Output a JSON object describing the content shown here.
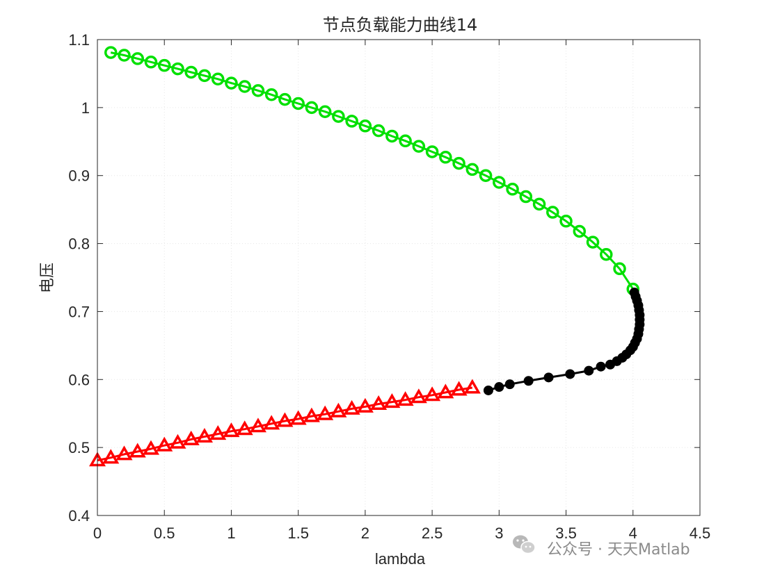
{
  "chart_data": {
    "type": "line",
    "title": "节点负载能力曲线14",
    "xlabel": "lambda",
    "ylabel": "电压",
    "xlim": [
      0,
      4.5
    ],
    "ylim": [
      0.4,
      1.1
    ],
    "xticks": [
      0,
      0.5,
      1,
      1.5,
      2,
      2.5,
      3,
      3.5,
      4,
      4.5
    ],
    "yticks": [
      0.4,
      0.5,
      0.6,
      0.7,
      0.8,
      0.9,
      1,
      1.1
    ],
    "xtick_labels": [
      "0",
      "0.5",
      "1",
      "1.5",
      "2",
      "2.5",
      "3",
      "3.5",
      "4",
      "4.5"
    ],
    "ytick_labels": [
      "0.4",
      "0.5",
      "0.6",
      "0.7",
      "0.8",
      "0.9",
      "1",
      "1.1"
    ],
    "grid": true,
    "series": [
      {
        "color": "#00e000",
        "marker": "circle",
        "x": [
          0.1,
          0.2,
          0.3,
          0.4,
          0.5,
          0.6,
          0.7,
          0.8,
          0.9,
          1.0,
          1.1,
          1.2,
          1.3,
          1.4,
          1.5,
          1.6,
          1.7,
          1.8,
          1.9,
          2.0,
          2.1,
          2.2,
          2.3,
          2.4,
          2.5,
          2.6,
          2.7,
          2.8,
          2.9,
          3.0,
          3.1,
          3.2,
          3.3,
          3.4,
          3.5,
          3.6,
          3.7,
          3.8,
          3.9,
          4.0
        ],
        "y": [
          1.081,
          1.077,
          1.072,
          1.067,
          1.062,
          1.057,
          1.052,
          1.047,
          1.042,
          1.036,
          1.031,
          1.025,
          1.019,
          1.012,
          1.006,
          1.0,
          0.994,
          0.987,
          0.98,
          0.973,
          0.966,
          0.958,
          0.951,
          0.943,
          0.935,
          0.927,
          0.918,
          0.909,
          0.9,
          0.89,
          0.88,
          0.869,
          0.858,
          0.846,
          0.833,
          0.818,
          0.802,
          0.784,
          0.763,
          0.733
        ]
      },
      {
        "color": "#000000",
        "marker": "filled-circle",
        "x": [
          4.01,
          4.02,
          4.03,
          4.04,
          4.045,
          4.05,
          4.05,
          4.05,
          4.045,
          4.04,
          4.03,
          4.015,
          4.0,
          3.98,
          3.95,
          3.92,
          3.88,
          3.83,
          3.76,
          3.67,
          3.53,
          3.37,
          3.22,
          3.08,
          3.0,
          2.92
        ],
        "y": [
          0.728,
          0.722,
          0.716,
          0.709,
          0.702,
          0.695,
          0.688,
          0.681,
          0.674,
          0.667,
          0.66,
          0.654,
          0.648,
          0.643,
          0.637,
          0.632,
          0.627,
          0.622,
          0.619,
          0.613,
          0.608,
          0.603,
          0.598,
          0.593,
          0.589,
          0.584
        ]
      },
      {
        "color": "#ff0000",
        "marker": "triangle",
        "x": [
          0.0,
          0.1,
          0.2,
          0.3,
          0.4,
          0.5,
          0.6,
          0.7,
          0.8,
          0.9,
          1.0,
          1.1,
          1.2,
          1.3,
          1.4,
          1.5,
          1.6,
          1.7,
          1.8,
          1.9,
          2.0,
          2.1,
          2.2,
          2.3,
          2.4,
          2.5,
          2.6,
          2.7,
          2.8
        ],
        "y": [
          0.481,
          0.485,
          0.49,
          0.494,
          0.498,
          0.503,
          0.507,
          0.512,
          0.516,
          0.52,
          0.524,
          0.527,
          0.531,
          0.535,
          0.539,
          0.542,
          0.546,
          0.549,
          0.553,
          0.557,
          0.56,
          0.564,
          0.567,
          0.57,
          0.574,
          0.577,
          0.581,
          0.585,
          0.588
        ]
      }
    ]
  },
  "watermark": {
    "icon": "wechat-icon",
    "text": "公众号 · 天天Matlab"
  }
}
